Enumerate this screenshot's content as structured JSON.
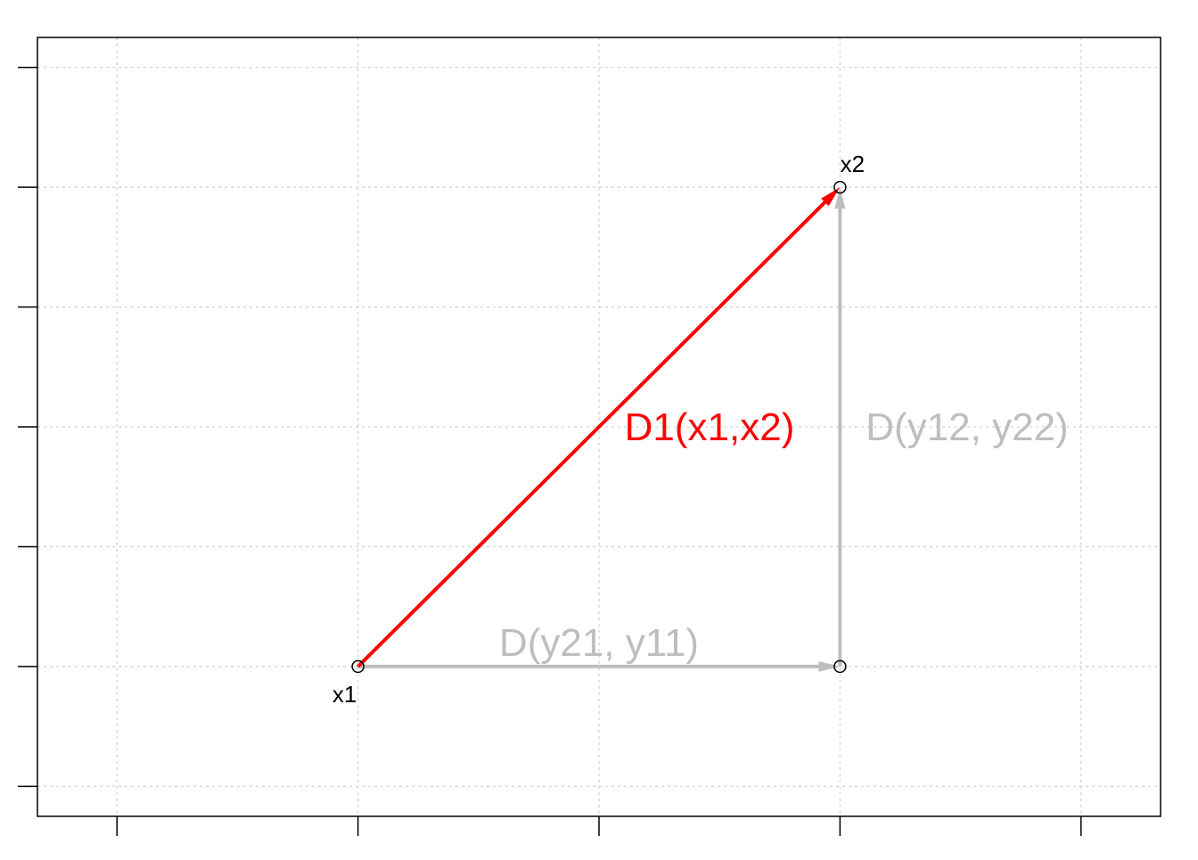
{
  "chart_data": {
    "type": "scatter",
    "xlim": [
      -0.33,
      4.33
    ],
    "ylim": [
      -0.25,
      6.25
    ],
    "x_ticks": [
      0,
      1,
      2,
      3,
      4
    ],
    "y_ticks": [
      0,
      1,
      2,
      3,
      4,
      5,
      6
    ],
    "tick_labels_shown": false,
    "grid": true,
    "points": [
      {
        "id": "x1",
        "label": "x1",
        "x": 1,
        "y": 1
      },
      {
        "id": "corner",
        "label": "",
        "x": 3,
        "y": 1
      },
      {
        "id": "x2",
        "label": "x2",
        "x": 3,
        "y": 5
      }
    ],
    "arrows": [
      {
        "id": "d-y21-y11",
        "from": [
          1,
          1
        ],
        "to": [
          3,
          1
        ],
        "label": "D(y21, y11)",
        "color": "#bebebe"
      },
      {
        "id": "d-y12-y22",
        "from": [
          3,
          1
        ],
        "to": [
          3,
          5
        ],
        "label": "D(y12, y22)",
        "color": "#bebebe"
      },
      {
        "id": "d1-x1-x2",
        "from": [
          1,
          1
        ],
        "to": [
          3,
          5
        ],
        "label": "D1(x1,x2)",
        "color": "#ff0000"
      }
    ]
  }
}
